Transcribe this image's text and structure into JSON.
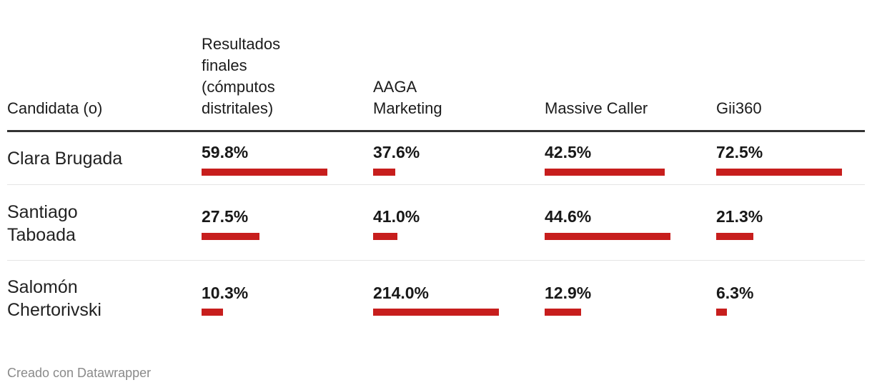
{
  "chart_data": {
    "type": "table",
    "columns": [
      "Candidata (o)",
      "Resultados\nfinales\n(cómputos\ndistritales)",
      "AAGA\nMarketing",
      "Massive Caller",
      "Gii360"
    ],
    "bar_color": "#c71e1d",
    "rows": [
      {
        "name": "Clara Brugada",
        "values": [
          59.8,
          37.6,
          42.5,
          72.5
        ],
        "labels": [
          "59.8%",
          "37.6%",
          "42.5%",
          "72.5%"
        ]
      },
      {
        "name": "Santiago\nTaboada",
        "values": [
          27.5,
          41.0,
          44.6,
          21.3
        ],
        "labels": [
          "27.5%",
          "41.0%",
          "44.6%",
          "21.3%"
        ]
      },
      {
        "name": "Salomón\nChertorivski",
        "values": [
          10.3,
          214.0,
          12.9,
          6.3
        ],
        "labels": [
          "10.3%",
          "214.0%",
          "12.9%",
          "6.3%"
        ]
      }
    ]
  },
  "footer": {
    "credit": "Creado con Datawrapper"
  }
}
